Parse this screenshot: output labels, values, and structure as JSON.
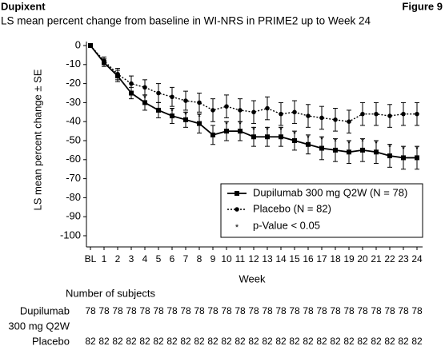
{
  "header": {
    "brand": "Dupixent",
    "figure": "Figure 9"
  },
  "chart_data": {
    "type": "line",
    "title": "LS mean percent change from baseline in WI-NRS in PRIME2 up to Week 24",
    "y_label": "LS mean percent change ± SE",
    "x_label": "Week",
    "categories": [
      "BL",
      "1",
      "2",
      "3",
      "4",
      "5",
      "6",
      "7",
      "8",
      "9",
      "10",
      "11",
      "12",
      "13",
      "14",
      "15",
      "16",
      "17",
      "18",
      "19",
      "20",
      "21",
      "22",
      "23",
      "24"
    ],
    "ylim": [
      -100,
      0
    ],
    "yticks": [
      0,
      -10,
      -20,
      -30,
      -40,
      -50,
      -60,
      -70,
      -80,
      -90,
      -100
    ],
    "series": [
      {
        "name": "Dupilumab 300 mg Q2W (N = 78)",
        "color": "#000000",
        "marker": "square",
        "dash": "solid",
        "values": [
          0,
          -9,
          -16,
          -25,
          -30,
          -34,
          -37,
          -39,
          -41,
          -47,
          -45,
          -45,
          -48,
          -48,
          -48,
          -50,
          -52,
          -54,
          -55,
          -56,
          -55,
          -56,
          -58,
          -59,
          -59
        ],
        "errors": [
          0,
          2,
          3,
          3,
          4,
          4,
          4,
          4,
          5,
          5,
          5,
          5,
          5,
          5,
          5,
          5,
          5,
          6,
          6,
          6,
          6,
          6,
          6,
          6,
          6
        ]
      },
      {
        "name": "Placebo (N = 82)",
        "color": "#000000",
        "marker": "circle",
        "dash": "dotted",
        "values": [
          0,
          -8,
          -15,
          -20,
          -22,
          -25,
          -27,
          -29,
          -30,
          -34,
          -32,
          -34,
          -35,
          -33,
          -36,
          -35,
          -37,
          -38,
          -39,
          -40,
          -36,
          -36,
          -37,
          -36,
          -36
        ],
        "errors": [
          0,
          2,
          3,
          4,
          4,
          5,
          5,
          5,
          5,
          6,
          6,
          6,
          6,
          6,
          6,
          6,
          6,
          6,
          6,
          6,
          6,
          6,
          6,
          6,
          6
        ]
      }
    ],
    "significance": {
      "name": "p-Value < 0.05",
      "symbol": "*",
      "flags": [
        false,
        false,
        false,
        false,
        true,
        false,
        true,
        true,
        true,
        false,
        true,
        true,
        true,
        true,
        true,
        true,
        true,
        true,
        true,
        true,
        true,
        true,
        true,
        true,
        true
      ]
    },
    "legend": "lower right"
  },
  "subjects": {
    "title": "Number of subjects",
    "rows": [
      {
        "label_lines": [
          "Dupilumab",
          "300 mg Q2W"
        ],
        "counts": [
          "78",
          "78",
          "78",
          "78",
          "78",
          "78",
          "78",
          "78",
          "78",
          "78",
          "78",
          "78",
          "78",
          "78",
          "78",
          "78",
          "78",
          "78",
          "78",
          "78",
          "78",
          "78",
          "78",
          "78",
          "78"
        ]
      },
      {
        "label_lines": [
          "Placebo"
        ],
        "counts": [
          "82",
          "82",
          "82",
          "82",
          "82",
          "82",
          "82",
          "82",
          "82",
          "82",
          "82",
          "82",
          "82",
          "82",
          "82",
          "82",
          "82",
          "82",
          "82",
          "82",
          "82",
          "82",
          "82",
          "82",
          "82"
        ]
      }
    ]
  }
}
